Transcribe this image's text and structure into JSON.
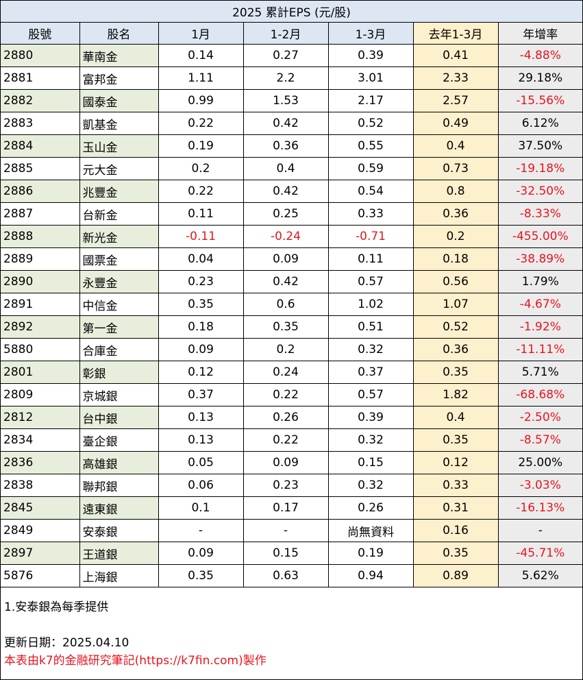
{
  "table": {
    "title": "2025 累計EPS (元/股)",
    "headers": [
      "股號",
      "股名",
      "1月",
      "1-2月",
      "1-3月",
      "去年1-3月",
      "年增率"
    ],
    "rows": [
      {
        "code": "2880",
        "name": "華南金",
        "m1": "0.14",
        "m12": "0.27",
        "m13": "0.39",
        "prev": "0.41",
        "yoy": "-4.88%"
      },
      {
        "code": "2881",
        "name": "富邦金",
        "m1": "1.11",
        "m12": "2.2",
        "m13": "3.01",
        "prev": "2.33",
        "yoy": "29.18%"
      },
      {
        "code": "2882",
        "name": "國泰金",
        "m1": "0.99",
        "m12": "1.53",
        "m13": "2.17",
        "prev": "2.57",
        "yoy": "-15.56%"
      },
      {
        "code": "2883",
        "name": "凱基金",
        "m1": "0.22",
        "m12": "0.42",
        "m13": "0.52",
        "prev": "0.49",
        "yoy": "6.12%"
      },
      {
        "code": "2884",
        "name": "玉山金",
        "m1": "0.19",
        "m12": "0.36",
        "m13": "0.55",
        "prev": "0.4",
        "yoy": "37.50%"
      },
      {
        "code": "2885",
        "name": "元大金",
        "m1": "0.2",
        "m12": "0.4",
        "m13": "0.59",
        "prev": "0.73",
        "yoy": "-19.18%"
      },
      {
        "code": "2886",
        "name": "兆豐金",
        "m1": "0.22",
        "m12": "0.42",
        "m13": "0.54",
        "prev": "0.8",
        "yoy": "-32.50%"
      },
      {
        "code": "2887",
        "name": "台新金",
        "m1": "0.11",
        "m12": "0.25",
        "m13": "0.33",
        "prev": "0.36",
        "yoy": "-8.33%"
      },
      {
        "code": "2888",
        "name": "新光金",
        "m1": "-0.11",
        "m12": "-0.24",
        "m13": "-0.71",
        "prev": "0.2",
        "yoy": "-455.00%"
      },
      {
        "code": "2889",
        "name": "國票金",
        "m1": "0.04",
        "m12": "0.09",
        "m13": "0.11",
        "prev": "0.18",
        "yoy": "-38.89%"
      },
      {
        "code": "2890",
        "name": "永豐金",
        "m1": "0.23",
        "m12": "0.42",
        "m13": "0.57",
        "prev": "0.56",
        "yoy": "1.79%"
      },
      {
        "code": "2891",
        "name": "中信金",
        "m1": "0.35",
        "m12": "0.6",
        "m13": "1.02",
        "prev": "1.07",
        "yoy": "-4.67%"
      },
      {
        "code": "2892",
        "name": "第一金",
        "m1": "0.18",
        "m12": "0.35",
        "m13": "0.51",
        "prev": "0.52",
        "yoy": "-1.92%"
      },
      {
        "code": "5880",
        "name": "合庫金",
        "m1": "0.09",
        "m12": "0.2",
        "m13": "0.32",
        "prev": "0.36",
        "yoy": "-11.11%"
      },
      {
        "code": "2801",
        "name": "彰銀",
        "m1": "0.12",
        "m12": "0.24",
        "m13": "0.37",
        "prev": "0.35",
        "yoy": "5.71%"
      },
      {
        "code": "2809",
        "name": "京城銀",
        "m1": "0.37",
        "m12": "0.22",
        "m13": "0.57",
        "prev": "1.82",
        "yoy": "-68.68%"
      },
      {
        "code": "2812",
        "name": "台中銀",
        "m1": "0.13",
        "m12": "0.26",
        "m13": "0.39",
        "prev": "0.4",
        "yoy": "-2.50%"
      },
      {
        "code": "2834",
        "name": "臺企銀",
        "m1": "0.13",
        "m12": "0.22",
        "m13": "0.32",
        "prev": "0.35",
        "yoy": "-8.57%"
      },
      {
        "code": "2836",
        "name": "高雄銀",
        "m1": "0.05",
        "m12": "0.09",
        "m13": "0.15",
        "prev": "0.12",
        "yoy": "25.00%"
      },
      {
        "code": "2838",
        "name": "聯邦銀",
        "m1": "0.06",
        "m12": "0.23",
        "m13": "0.32",
        "prev": "0.33",
        "yoy": "-3.03%"
      },
      {
        "code": "2845",
        "name": "遠東銀",
        "m1": "0.1",
        "m12": "0.17",
        "m13": "0.26",
        "prev": "0.31",
        "yoy": "-16.13%"
      },
      {
        "code": "2849",
        "name": "安泰銀",
        "m1": "-",
        "m12": "-",
        "m13": "尚無資料",
        "prev": "0.16",
        "yoy": "-"
      },
      {
        "code": "2897",
        "name": "王道銀",
        "m1": "0.09",
        "m12": "0.15",
        "m13": "0.19",
        "prev": "0.35",
        "yoy": "-45.71%"
      },
      {
        "code": "5876",
        "name": "上海銀",
        "m1": "0.35",
        "m12": "0.63",
        "m13": "0.94",
        "prev": "0.89",
        "yoy": "5.62%"
      }
    ]
  },
  "notes": {
    "note1": "1.安泰銀為每季提供",
    "updated": "更新日期：2025.04.10",
    "credit": "本表由k7的金融研究筆記(https://k7fin.com)製作"
  },
  "colors": {
    "header_bg": "#dde7f3",
    "prev_col_bg": "#fdf0cc",
    "yoy_col_bg": "#ececec",
    "stripe_bg": "#e7efdc",
    "negative_text": "#e8141d"
  }
}
